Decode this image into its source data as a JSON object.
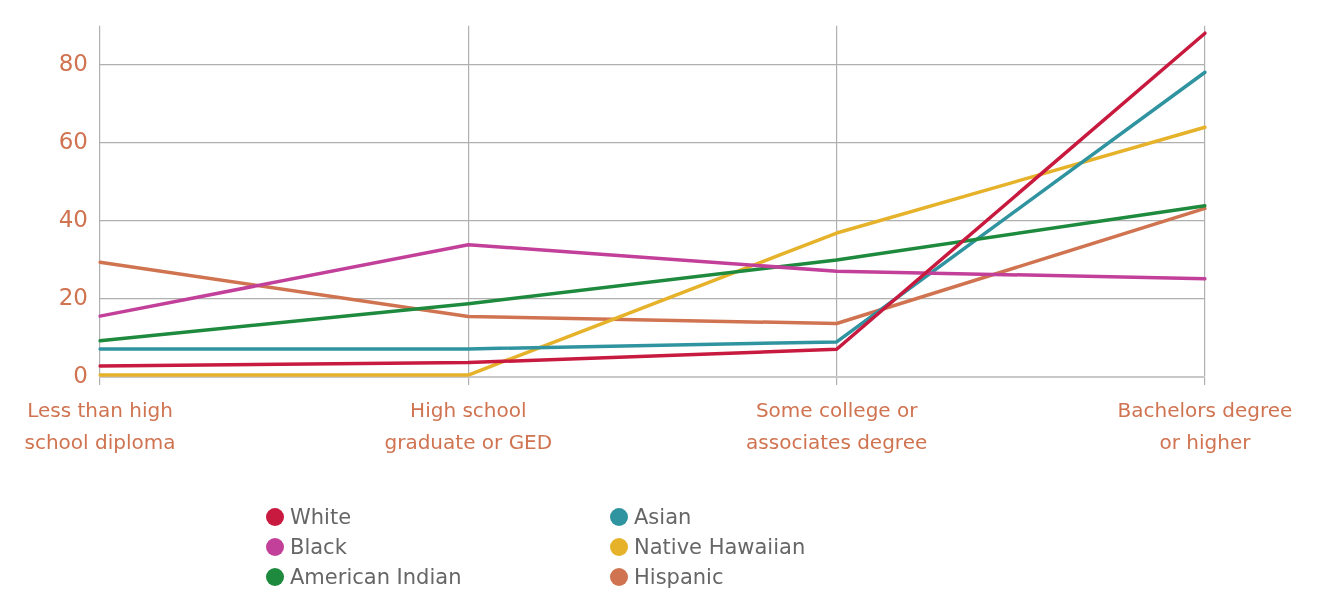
{
  "chart_data": {
    "type": "line",
    "categories": [
      "Less than high school diploma",
      "High school graduate or GED",
      "Some college or associates degree",
      "Bachelors degree or higher"
    ],
    "series": [
      {
        "name": "White",
        "color": "#c8193f",
        "values": [
          2.8,
          3.7,
          7.1,
          88.1
        ]
      },
      {
        "name": "Black",
        "color": "#c2409a",
        "values": [
          15.6,
          33.9,
          27.1,
          25.2
        ]
      },
      {
        "name": "American Indian",
        "color": "#1e8a3e",
        "values": [
          9.3,
          18.8,
          30.0,
          43.9
        ]
      },
      {
        "name": "Asian",
        "color": "#3094a0",
        "values": [
          7.2,
          7.2,
          9.0,
          78.1
        ]
      },
      {
        "name": "Native Hawaiian",
        "color": "#e6b22a",
        "values": [
          0.5,
          0.5,
          36.9,
          64.0
        ]
      },
      {
        "name": "Hispanic",
        "color": "#d07350",
        "values": [
          29.4,
          15.5,
          13.7,
          43.2
        ]
      }
    ],
    "ylim": [
      0,
      90
    ],
    "yticks": [
      0,
      20,
      40,
      60,
      80
    ],
    "grid": true,
    "legend": "bottom",
    "marker": "none",
    "line_style": "solid"
  }
}
